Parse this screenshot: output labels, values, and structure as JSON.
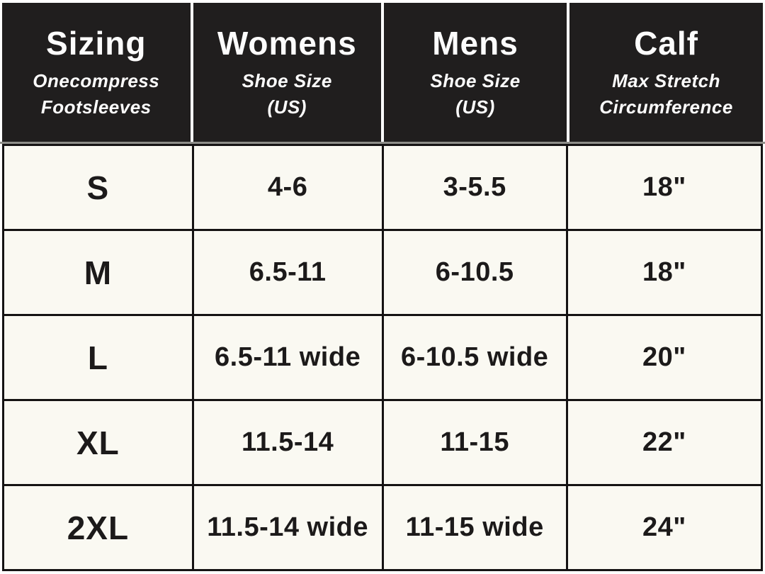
{
  "header": {
    "columns": [
      {
        "title": "Sizing",
        "sub1": "Onecompress",
        "sub2": "Footsleeves"
      },
      {
        "title": "Womens",
        "sub1": "Shoe Size",
        "sub2": "(US)"
      },
      {
        "title": "Mens",
        "sub1": "Shoe Size",
        "sub2": "(US)"
      },
      {
        "title": "Calf",
        "sub1": "Max Stretch",
        "sub2": "Circumference"
      }
    ]
  },
  "rows": [
    {
      "size": "S",
      "womens": "4-6",
      "mens": "3-5.5",
      "calf": "18\""
    },
    {
      "size": "M",
      "womens": "6.5-11",
      "mens": "6-10.5",
      "calf": "18\""
    },
    {
      "size": "L",
      "womens": "6.5-11 wide",
      "mens": "6-10.5 wide",
      "calf": "20\""
    },
    {
      "size": "XL",
      "womens": "11.5-14",
      "mens": "11-15",
      "calf": "22\""
    },
    {
      "size": "2XL",
      "womens": "11.5-14 wide",
      "mens": "11-15 wide",
      "calf": "24\""
    }
  ],
  "colors": {
    "header_bg": "#201E1E",
    "header_text": "#FCFCFC",
    "body_bg": "#FAF9F2",
    "body_text": "#1C1A1A",
    "grid_line": "#151313",
    "header_divider": "#8E8E89"
  },
  "chart_data": {
    "type": "table",
    "title": "Sizing — Onecompress Footsleeves",
    "columns": [
      "Sizing (Onecompress Footsleeves)",
      "Womens Shoe Size (US)",
      "Mens Shoe Size (US)",
      "Calf Max Stretch Circumference"
    ],
    "rows": [
      [
        "S",
        "4-6",
        "3-5.5",
        "18\""
      ],
      [
        "M",
        "6.5-11",
        "6-10.5",
        "18\""
      ],
      [
        "L",
        "6.5-11 wide",
        "6-10.5 wide",
        "20\""
      ],
      [
        "XL",
        "11.5-14",
        "11-15",
        "22\""
      ],
      [
        "2XL",
        "11.5-14 wide",
        "11-15 wide",
        "24\""
      ]
    ]
  }
}
